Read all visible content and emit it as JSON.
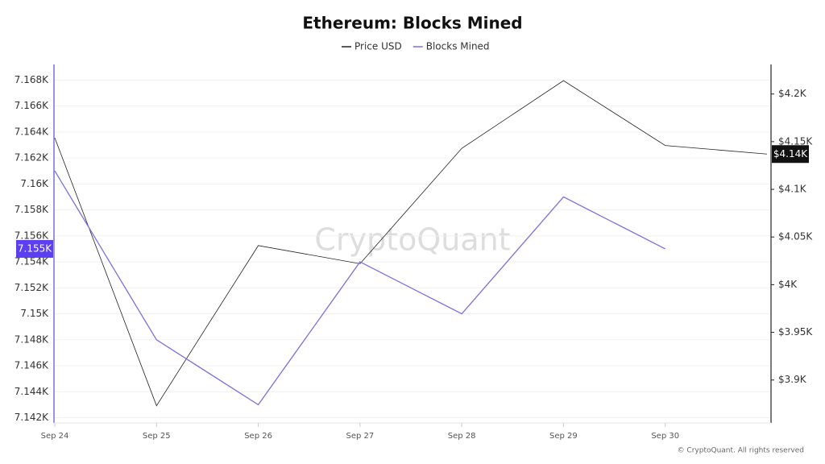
{
  "chart_data": {
    "type": "line",
    "title": "Ethereum: Blocks Mined",
    "categories": [
      "Sep 24",
      "Sep 25",
      "Sep 26",
      "Sep 27",
      "Sep 28",
      "Sep 29",
      "Sep 30",
      null
    ],
    "series": [
      {
        "name": "Price USD",
        "color": "#222222",
        "axis": "y2",
        "values": [
          4154,
          3873,
          4041,
          4022,
          4143,
          4214,
          4146,
          4137
        ],
        "value_labels": [
          null,
          null,
          null,
          null,
          null,
          null,
          null,
          "$4.14K"
        ]
      },
      {
        "name": "Blocks Mined",
        "color": "#7b6fe0",
        "values": [
          7161,
          7148,
          7143,
          7154,
          7150,
          7159,
          7155,
          null
        ],
        "value_labels": [
          null,
          null,
          null,
          null,
          null,
          null,
          "7.155K",
          null
        ]
      }
    ],
    "ylim": [
      7141.6,
      7169.2
    ],
    "yticks": [
      {
        "value": 7142,
        "label": "7.142K"
      },
      {
        "value": 7144,
        "label": "7.144K"
      },
      {
        "value": 7146,
        "label": "7.146K"
      },
      {
        "value": 7148,
        "label": "7.148K"
      },
      {
        "value": 7150,
        "label": "7.15K"
      },
      {
        "value": 7152,
        "label": "7.152K"
      },
      {
        "value": 7154,
        "label": "7.154K"
      },
      {
        "value": 7156,
        "label": "7.156K"
      },
      {
        "value": 7158,
        "label": "7.158K"
      },
      {
        "value": 7160,
        "label": "7.16K"
      },
      {
        "value": 7162,
        "label": "7.162K"
      },
      {
        "value": 7164,
        "label": "7.164K"
      },
      {
        "value": 7166,
        "label": "7.166K"
      },
      {
        "value": 7168,
        "label": "7.168K"
      }
    ],
    "y2lim": [
      3855,
      4231
    ],
    "y2ticks": [
      {
        "value": 3900,
        "label": "$3.9K"
      },
      {
        "value": 3950,
        "label": "$3.95K"
      },
      {
        "value": 4000,
        "label": "$4K"
      },
      {
        "value": 4050,
        "label": "$4.05K"
      },
      {
        "value": 4100,
        "label": "$4.1K"
      },
      {
        "value": 4150,
        "label": "$4.15K"
      },
      {
        "value": 4200,
        "label": "$4.2K"
      }
    ],
    "grid": true,
    "legend": "top",
    "watermark": "CryptoQuant",
    "copyright": "© CryptoQuant. All rights reserved"
  }
}
